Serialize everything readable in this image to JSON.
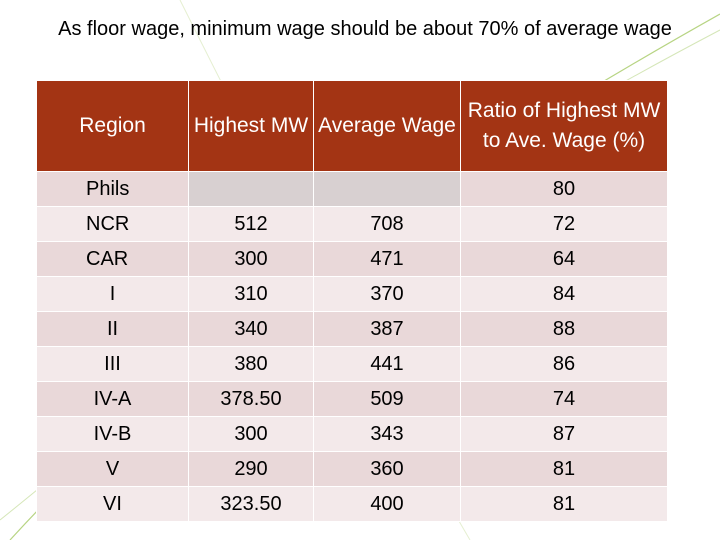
{
  "slide": {
    "title": "As floor wage, minimum wage should be about 70% of average wage"
  },
  "table": {
    "headers": [
      "Region",
      "Highest MW",
      "Average Wage",
      "Ratio of Highest MW to Ave. Wage (%)"
    ],
    "rows": [
      [
        "Phils",
        "",
        "",
        "80"
      ],
      [
        "NCR",
        "512",
        "708",
        "72"
      ],
      [
        "CAR",
        "300",
        "471",
        "64"
      ],
      [
        "I",
        "310",
        "370",
        "84"
      ],
      [
        "II",
        "340",
        "387",
        "88"
      ],
      [
        "III",
        "380",
        "441",
        "86"
      ],
      [
        "IV-A",
        "378.50",
        "509",
        "74"
      ],
      [
        "IV-B",
        "300",
        "343",
        "87"
      ],
      [
        "V",
        "290",
        "360",
        "81"
      ],
      [
        "VI",
        "323.50",
        "400",
        "81"
      ]
    ]
  },
  "colors": {
    "header_bg": "#a33414",
    "row_bg": "#e9d8d9",
    "row_alt_bg": "#f3e9ea",
    "accent_line": "#9fc55a"
  }
}
